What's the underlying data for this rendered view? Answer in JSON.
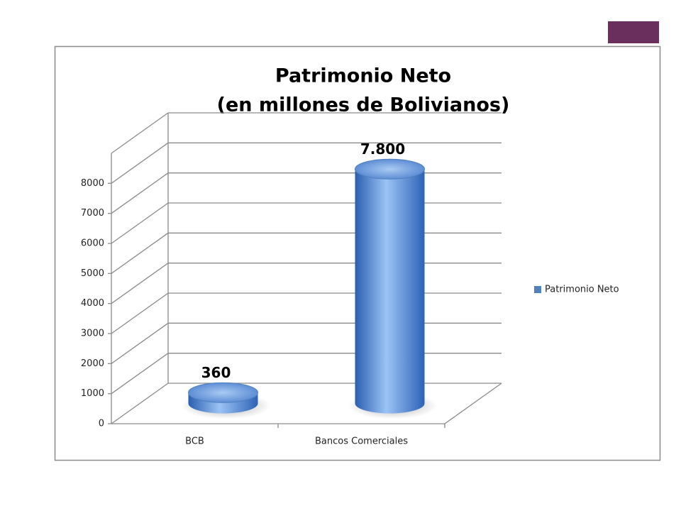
{
  "chart_data": {
    "type": "bar3d_cylinder",
    "title": "Patrimonio Neto",
    "subtitle": "(en millones de Bolivianos)",
    "categories": [
      "BCB",
      "Bancos Comerciales"
    ],
    "series": [
      {
        "name": "Patrimonio Neto",
        "color": "#4f81bd",
        "values": [
          360,
          7800
        ],
        "value_labels": [
          "360",
          "7.800"
        ]
      }
    ],
    "ylim": [
      0,
      9000
    ],
    "yticks": [
      0,
      1000,
      2000,
      3000,
      4000,
      5000,
      6000,
      7000,
      8000
    ],
    "grid": true,
    "legend": "right"
  }
}
